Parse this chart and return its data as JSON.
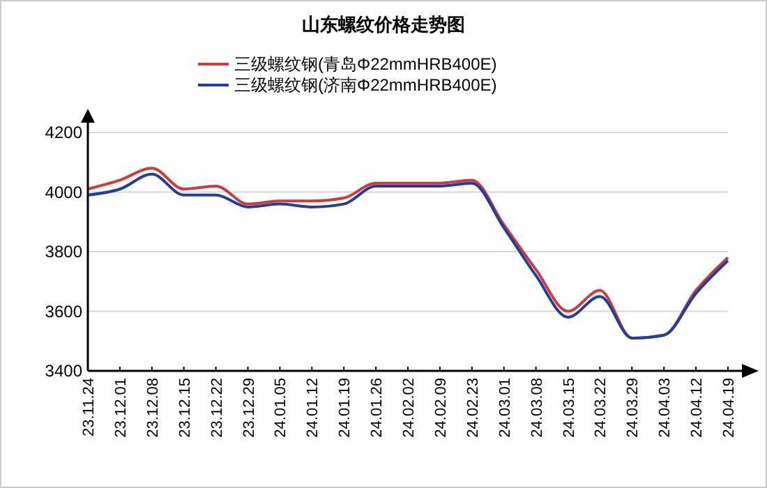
{
  "chart_data": {
    "type": "line",
    "title": "山东螺纹价格走势图",
    "categories": [
      "23.11.24",
      "23.12.01",
      "23.12.08",
      "23.12.15",
      "23.12.22",
      "23.12.29",
      "24.01.05",
      "24.01.12",
      "24.01.19",
      "24.01.26",
      "24.02.02",
      "24.02.09",
      "24.02.23",
      "24.03.01",
      "24.03.08",
      "24.03.15",
      "24.03.22",
      "24.03.29",
      "24.04.03",
      "24.04.12",
      "24.04.19"
    ],
    "series": [
      {
        "name": "三级螺纹钢(青岛Φ22mmHRB400E)",
        "color": "#d03a3a",
        "values": [
          4010,
          4040,
          4080,
          4010,
          4020,
          3960,
          3970,
          3970,
          3980,
          4030,
          4030,
          4030,
          4040,
          3890,
          3740,
          3600,
          3670,
          3510,
          3520,
          3670,
          3780
        ]
      },
      {
        "name": "三级螺纹钢(济南Φ22mmHRB400E)",
        "color": "#1f3f9a",
        "values": [
          3990,
          4010,
          4060,
          3990,
          3990,
          3950,
          3960,
          3950,
          3960,
          4020,
          4020,
          4020,
          4030,
          3880,
          3720,
          3580,
          3650,
          3510,
          3520,
          3660,
          3770
        ]
      }
    ],
    "ylim": [
      3400,
      4200
    ],
    "yticks": [
      3400,
      3600,
      3800,
      4000,
      4200
    ],
    "grid": "y",
    "legend": "top",
    "marker": "none",
    "line_style": "solid"
  }
}
